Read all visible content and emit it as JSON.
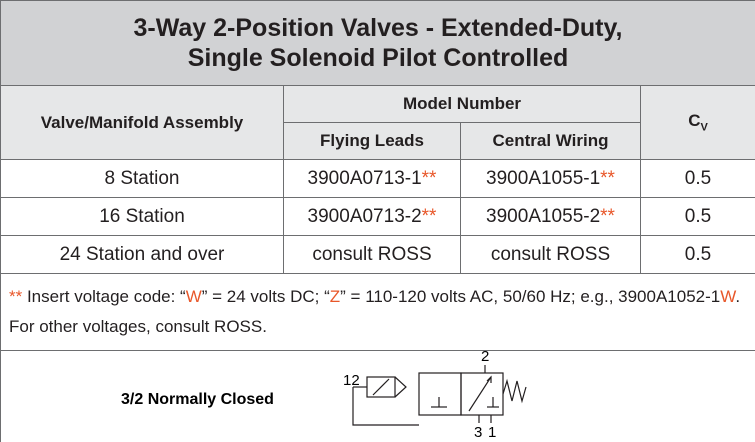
{
  "header": {
    "title_lines": [
      "3-Way 2-Position Valves - Extended-Duty,",
      "Single Solenoid Pilot Controlled"
    ]
  },
  "table": {
    "columns": {
      "assembly": "Valve/Manifold Assembly",
      "model_number": "Model Number",
      "flying_leads": "Flying Leads",
      "central_wiring": "Central Wiring",
      "cv": "C",
      "cv_sub": "V"
    },
    "rows": [
      {
        "assembly": "8 Station",
        "flying_leads": {
          "text": "3900A0713-1",
          "suffix": "**"
        },
        "central_wiring": {
          "text": "3900A1055-1",
          "suffix": "**"
        },
        "cv": "0.5"
      },
      {
        "assembly": "16 Station",
        "flying_leads": {
          "text": "3900A0713-2",
          "suffix": "**"
        },
        "central_wiring": {
          "text": "3900A1055-2",
          "suffix": "**"
        },
        "cv": "0.5"
      },
      {
        "assembly": "24 Station and over",
        "flying_leads": {
          "text": "consult ROSS"
        },
        "central_wiring": {
          "text": "consult ROSS"
        },
        "cv": "0.5"
      }
    ]
  },
  "note": {
    "accent_color": "#e8572a",
    "segments": [
      {
        "text": "**",
        "accent": true
      },
      {
        "text": " Insert voltage code: “"
      },
      {
        "text": "W",
        "accent": true
      },
      {
        "text": "” = 24 volts DC; “"
      },
      {
        "text": "Z",
        "accent": true
      },
      {
        "text": "” = 110-120 volts AC, 50/60 Hz; e.g., 3900A1052-1"
      },
      {
        "text": "W",
        "accent": true
      },
      {
        "text": ".  For other voltages, consult ROSS."
      }
    ]
  },
  "diagram": {
    "label": "3/2 Normally Closed",
    "ports": [
      "12",
      "2",
      "3",
      "1"
    ]
  }
}
